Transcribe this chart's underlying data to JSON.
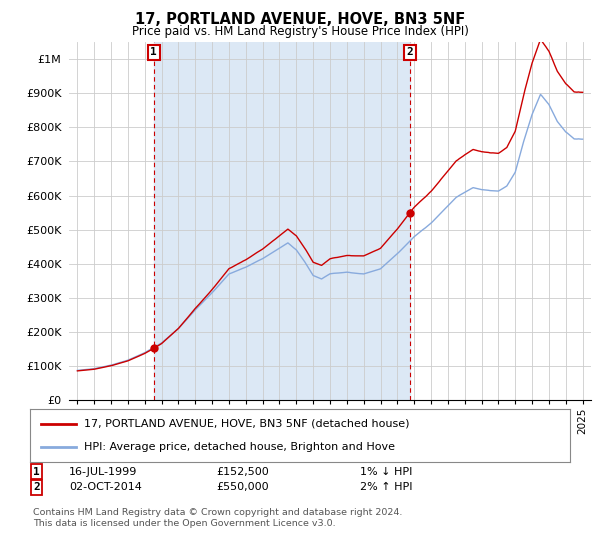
{
  "title": "17, PORTLAND AVENUE, HOVE, BN3 5NF",
  "subtitle": "Price paid vs. HM Land Registry's House Price Index (HPI)",
  "hpi_label": "HPI: Average price, detached house, Brighton and Hove",
  "property_label": "17, PORTLAND AVENUE, HOVE, BN3 5NF (detached house)",
  "annotation1_date": "16-JUL-1999",
  "annotation1_price": "£152,500",
  "annotation1_hpi": "1% ↓ HPI",
  "annotation1_year": 1999.54,
  "annotation1_value": 152500,
  "annotation2_date": "02-OCT-2014",
  "annotation2_price": "£550,000",
  "annotation2_hpi": "2% ↑ HPI",
  "annotation2_year": 2014.75,
  "annotation2_value": 550000,
  "footer": "Contains HM Land Registry data © Crown copyright and database right 2024.\nThis data is licensed under the Open Government Licence v3.0.",
  "line_color_property": "#cc0000",
  "line_color_hpi": "#88aadd",
  "annotation_box_color": "#cc0000",
  "shade_color": "#dce8f5",
  "background_color": "#ffffff",
  "grid_color": "#cccccc",
  "ylim": [
    0,
    1050000
  ],
  "yticks": [
    0,
    100000,
    200000,
    300000,
    400000,
    500000,
    600000,
    700000,
    800000,
    900000,
    1000000
  ],
  "ytick_labels": [
    "£0",
    "£100K",
    "£200K",
    "£300K",
    "£400K",
    "£500K",
    "£600K",
    "£700K",
    "£800K",
    "£900K",
    "£1M"
  ],
  "xlim_start": 1994.5,
  "xlim_end": 2025.5
}
